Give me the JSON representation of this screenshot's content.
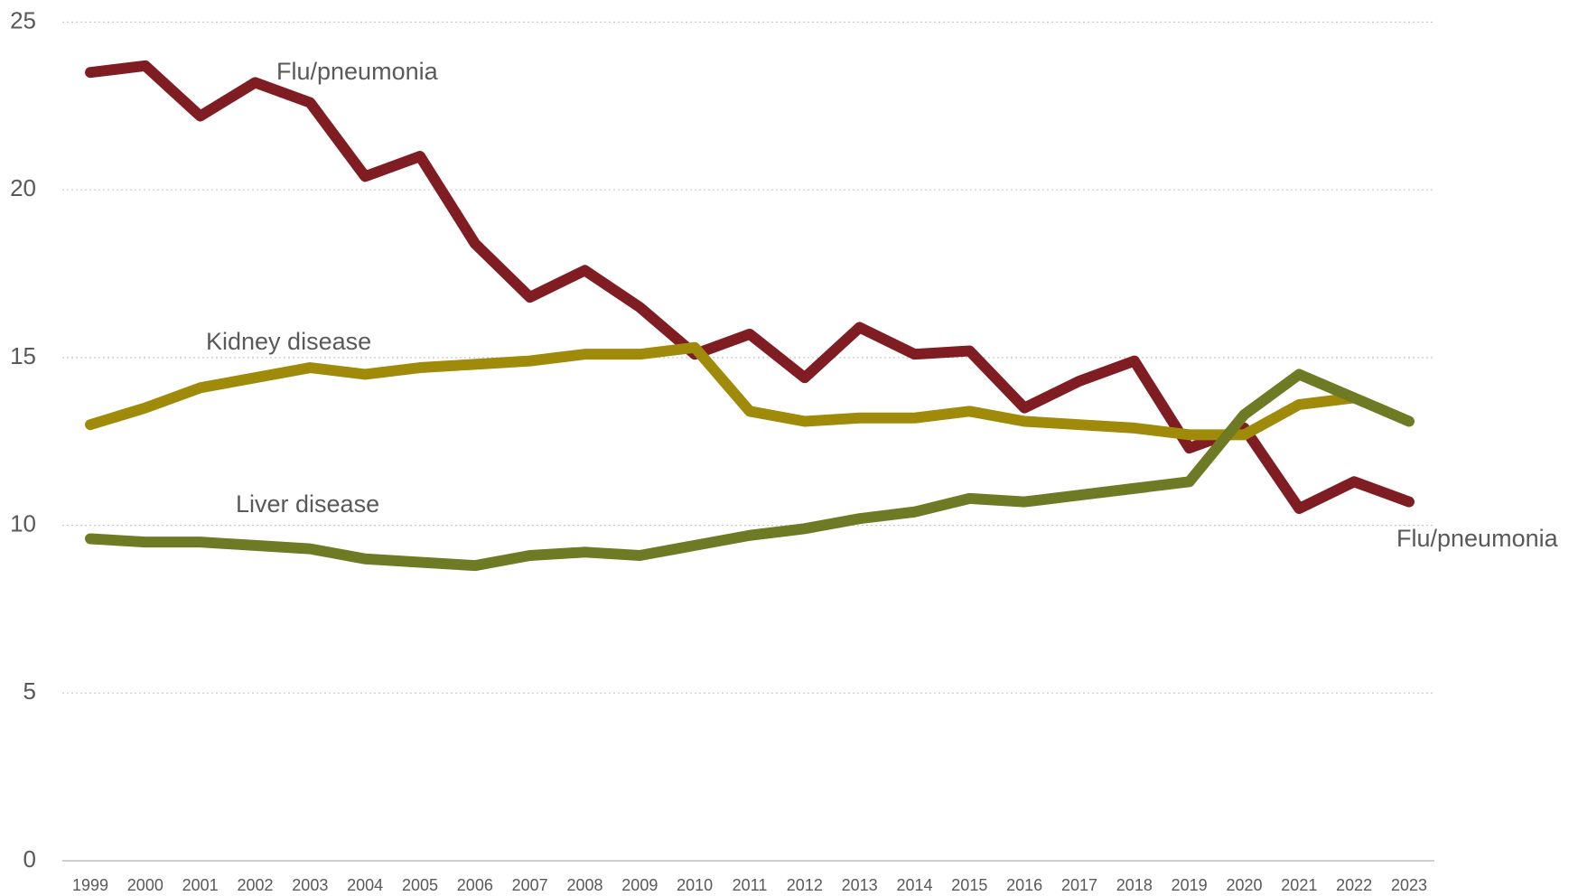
{
  "chart_data": {
    "type": "line",
    "categories": [
      "1999",
      "2000",
      "2001",
      "2002",
      "2003",
      "2004",
      "2005",
      "2006",
      "2007",
      "2008",
      "2009",
      "2010",
      "2011",
      "2012",
      "2013",
      "2014",
      "2015",
      "2016",
      "2017",
      "2018",
      "2019",
      "2020",
      "2021",
      "2022",
      "2023"
    ],
    "series": [
      {
        "name": "Flu/pneumonia",
        "color": "#7f1d22",
        "values": [
          23.5,
          23.7,
          22.2,
          23.2,
          22.6,
          20.4,
          21.0,
          18.4,
          16.8,
          17.6,
          16.5,
          15.1,
          15.7,
          14.4,
          15.9,
          15.1,
          15.2,
          13.5,
          14.3,
          14.9,
          12.3,
          12.9,
          10.5,
          11.3,
          10.7
        ]
      },
      {
        "name": "Kidney disease",
        "color": "#a08a0a",
        "values": [
          13.0,
          13.5,
          14.1,
          14.4,
          14.7,
          14.5,
          14.7,
          14.8,
          14.9,
          15.1,
          15.1,
          15.3,
          13.4,
          13.1,
          13.2,
          13.2,
          13.4,
          13.1,
          13.0,
          12.9,
          12.7,
          12.7,
          13.6,
          13.8,
          null
        ]
      },
      {
        "name": "Liver disease",
        "color": "#6e7a24",
        "values": [
          9.6,
          9.5,
          9.5,
          9.4,
          9.3,
          9.0,
          8.9,
          8.8,
          9.1,
          9.2,
          9.1,
          9.4,
          9.7,
          9.9,
          10.2,
          10.4,
          10.8,
          10.7,
          10.9,
          11.1,
          11.3,
          13.3,
          14.5,
          13.8,
          13.1
        ]
      }
    ],
    "annotations": [
      "Flu/pneumonia",
      "Kidney disease",
      "Liver disease",
      "Flu/pneumonia"
    ],
    "ylim": [
      0,
      25
    ],
    "yticks": [
      0,
      5,
      10,
      15,
      20,
      25
    ],
    "grid": true
  }
}
